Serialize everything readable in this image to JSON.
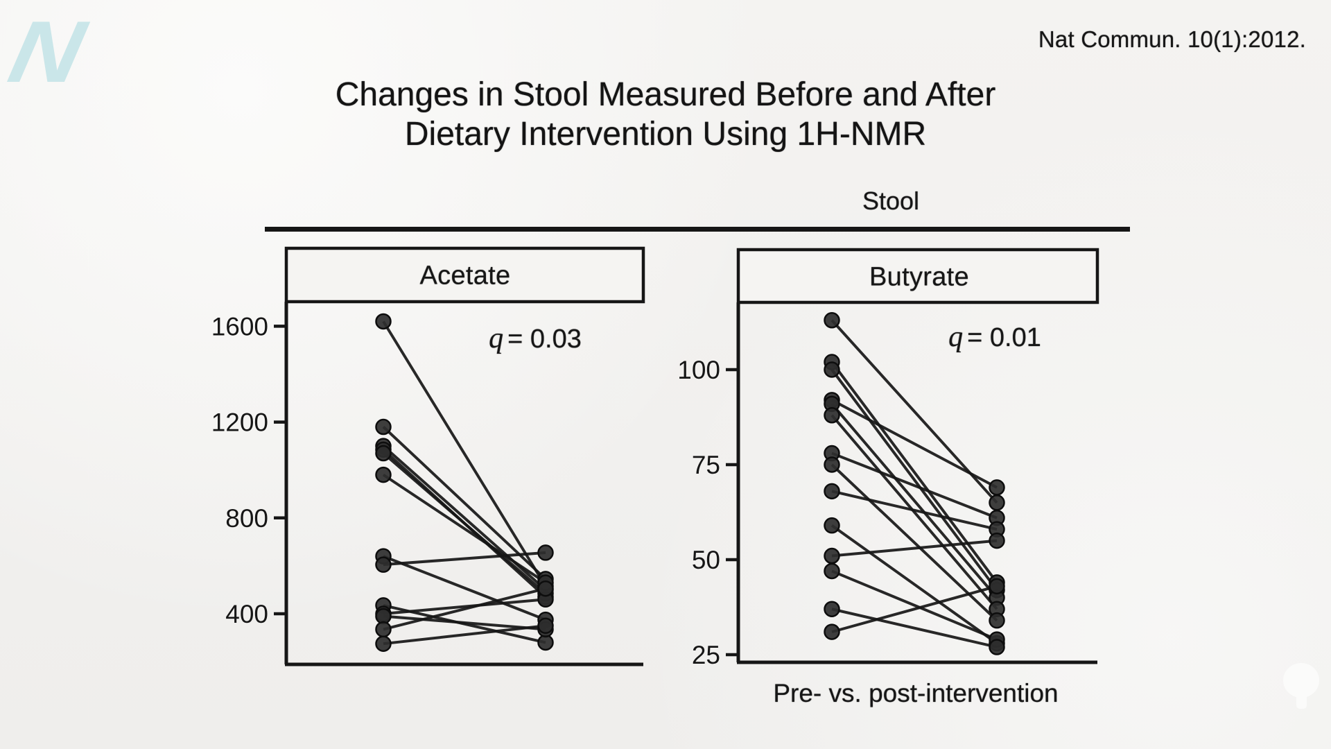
{
  "page": {
    "background_tone": "#f3f2f0",
    "ink": "#161616"
  },
  "logo": {
    "letter": "N",
    "color": "#c7e5e8"
  },
  "citation": {
    "text": "Nat Commun. 10(1):2012."
  },
  "title": {
    "line1": "Changes in Stool Measured Before and After",
    "line2": "Dietary Intervention Using 1H-NMR"
  },
  "figure": {
    "group_label": "Stool",
    "x_axis_caption": "Pre- vs. post-intervention"
  },
  "chart_data": [
    {
      "type": "scatter",
      "subtype": "paired-slope",
      "title": "Acetate",
      "annotation": "q = 0.03",
      "ylim": [
        190,
        1700
      ],
      "yticks": [
        400,
        800,
        1200,
        1600
      ],
      "grid": false,
      "series": [
        {
          "name": "pre-intervention",
          "values": [
            1620,
            1180,
            1100,
            1085,
            1070,
            980,
            640,
            605,
            435,
            400,
            390,
            335,
            275
          ]
        },
        {
          "name": "post-intervention",
          "values": [
            515,
            545,
            500,
            470,
            485,
            530,
            375,
            655,
            280,
            460,
            335,
            505,
            350
          ]
        }
      ],
      "pairs": [
        [
          1620,
          515
        ],
        [
          1180,
          545
        ],
        [
          1100,
          500
        ],
        [
          1085,
          470
        ],
        [
          1070,
          485
        ],
        [
          980,
          530
        ],
        [
          640,
          375
        ],
        [
          605,
          655
        ],
        [
          435,
          280
        ],
        [
          400,
          460
        ],
        [
          390,
          335
        ],
        [
          335,
          505
        ],
        [
          275,
          350
        ]
      ]
    },
    {
      "type": "scatter",
      "subtype": "paired-slope",
      "title": "Butyrate",
      "annotation": "q = 0.01",
      "ylim": [
        23,
        118
      ],
      "yticks": [
        25,
        50,
        75,
        100
      ],
      "grid": false,
      "series": [
        {
          "name": "pre-intervention",
          "values": [
            113,
            102,
            100,
            92,
            91,
            88,
            78,
            75,
            68,
            59,
            51,
            47,
            37,
            31
          ]
        },
        {
          "name": "post-intervention",
          "values": [
            65,
            44,
            42,
            69,
            40,
            37,
            61,
            34,
            58,
            28,
            55,
            29,
            27,
            43
          ]
        }
      ],
      "pairs": [
        [
          113,
          65
        ],
        [
          102,
          44
        ],
        [
          100,
          42
        ],
        [
          92,
          69
        ],
        [
          91,
          40
        ],
        [
          88,
          37
        ],
        [
          78,
          61
        ],
        [
          75,
          34
        ],
        [
          68,
          58
        ],
        [
          59,
          28
        ],
        [
          51,
          55
        ],
        [
          47,
          29
        ],
        [
          37,
          27
        ],
        [
          31,
          43
        ]
      ]
    }
  ]
}
